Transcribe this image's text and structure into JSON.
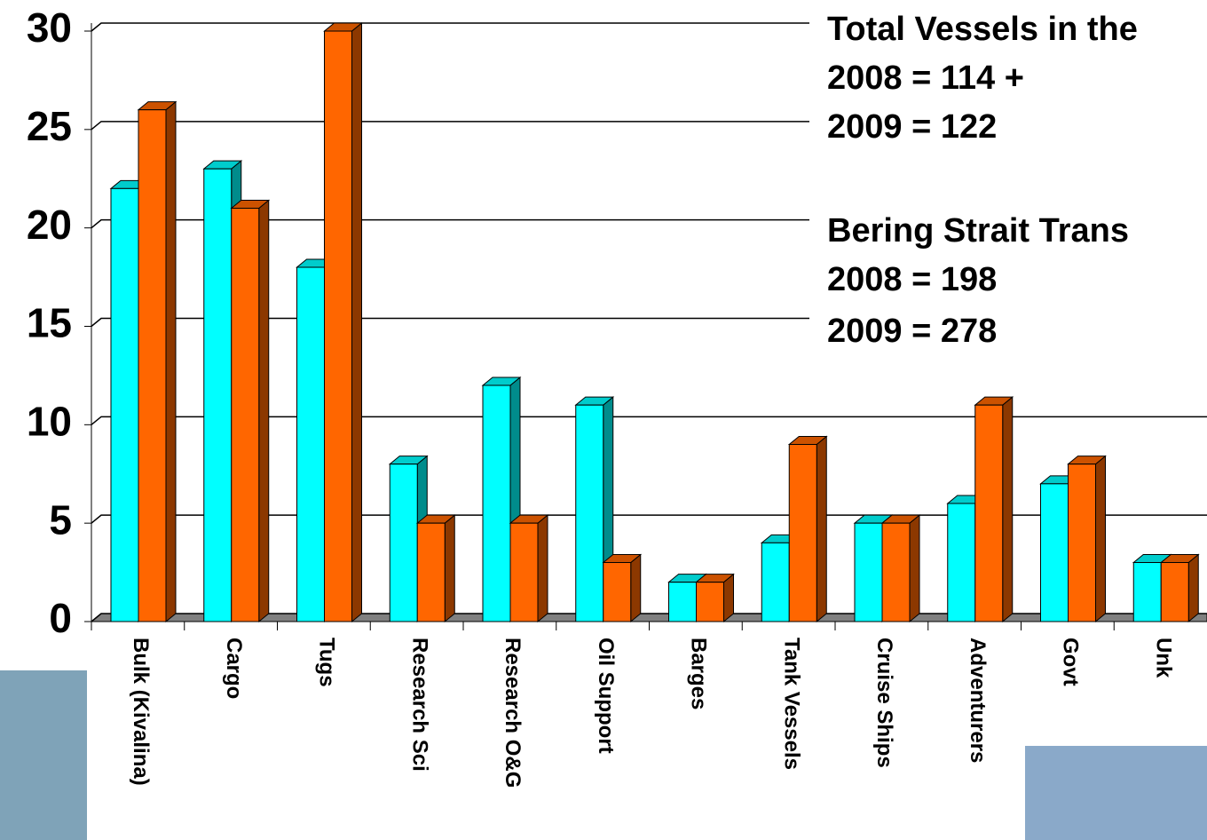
{
  "chart_data": {
    "type": "bar3d",
    "categories": [
      "Bulk (Kivalina)",
      "Cargo",
      "Tugs",
      "Research Sci",
      "Research O&G",
      "Oil Support",
      "Barges",
      "Tank Vessels",
      "Cruise Ships",
      "Adventurers",
      "Govt",
      "Unk"
    ],
    "series": [
      {
        "color": "#00ffff",
        "values": [
          22,
          23,
          18,
          8,
          12,
          11,
          2,
          4,
          5,
          6,
          7,
          3
        ]
      },
      {
        "color": "#ff6600",
        "values": [
          26,
          21,
          30,
          5,
          5,
          3,
          2,
          9,
          5,
          11,
          8,
          3
        ]
      }
    ],
    "ylim": [
      0,
      30
    ],
    "yticks": [
      0,
      5,
      10,
      15,
      20,
      25,
      30
    ],
    "grid": true,
    "annotations": [
      "Total Vessels in the",
      "2008 = 114 +",
      "2009 = 122",
      "Bering Strait Trans",
      "2008 = 198",
      "2009 = 278"
    ]
  }
}
